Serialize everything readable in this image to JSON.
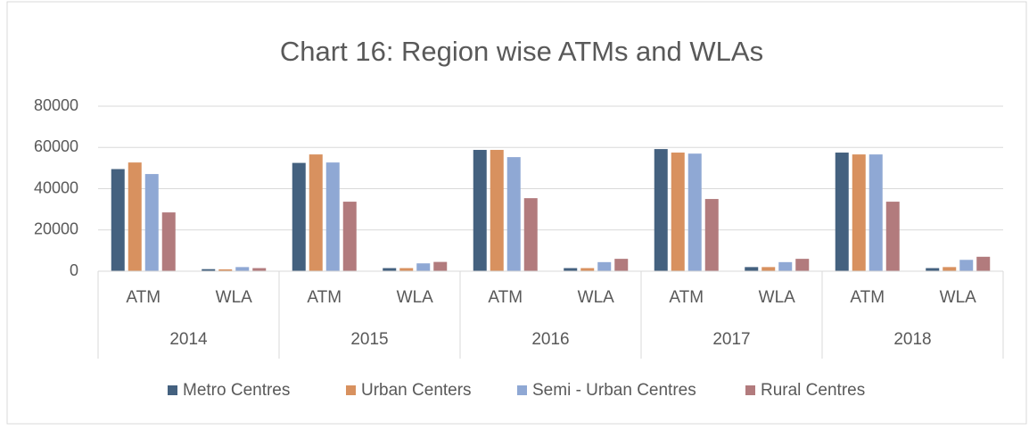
{
  "chart_data": {
    "type": "bar",
    "title": "Chart 16: Region wise ATMs and WLAs",
    "categories": [
      "ATM",
      "WLA",
      "ATM",
      "WLA",
      "ATM",
      "WLA",
      "ATM",
      "WLA",
      "ATM",
      "WLA"
    ],
    "category_groups": [
      "2014",
      "2015",
      "2016",
      "2017",
      "2018"
    ],
    "series": [
      {
        "name": "Metro Centres",
        "color": "#44617f",
        "values": [
          49500,
          1000,
          52500,
          1500,
          58800,
          1500,
          59200,
          2000,
          57500,
          1500
        ]
      },
      {
        "name": "Urban Centers",
        "color": "#d8915f",
        "values": [
          52700,
          900,
          56600,
          1500,
          58800,
          1500,
          57500,
          2000,
          56600,
          2000
        ]
      },
      {
        "name": "Semi - Urban Centres",
        "color": "#8fa8d4",
        "values": [
          47100,
          2000,
          52700,
          3800,
          55300,
          4400,
          57000,
          4400,
          56600,
          5500
        ]
      },
      {
        "name": "Rural Centres",
        "color": "#b27b7d",
        "values": [
          28500,
          1500,
          33700,
          4500,
          35400,
          6000,
          35000,
          6000,
          33700,
          7000
        ]
      }
    ],
    "ylim": [
      0,
      80000
    ],
    "yticks": [
      0,
      20000,
      40000,
      60000,
      80000
    ],
    "grid": true,
    "legend": "bottom"
  }
}
